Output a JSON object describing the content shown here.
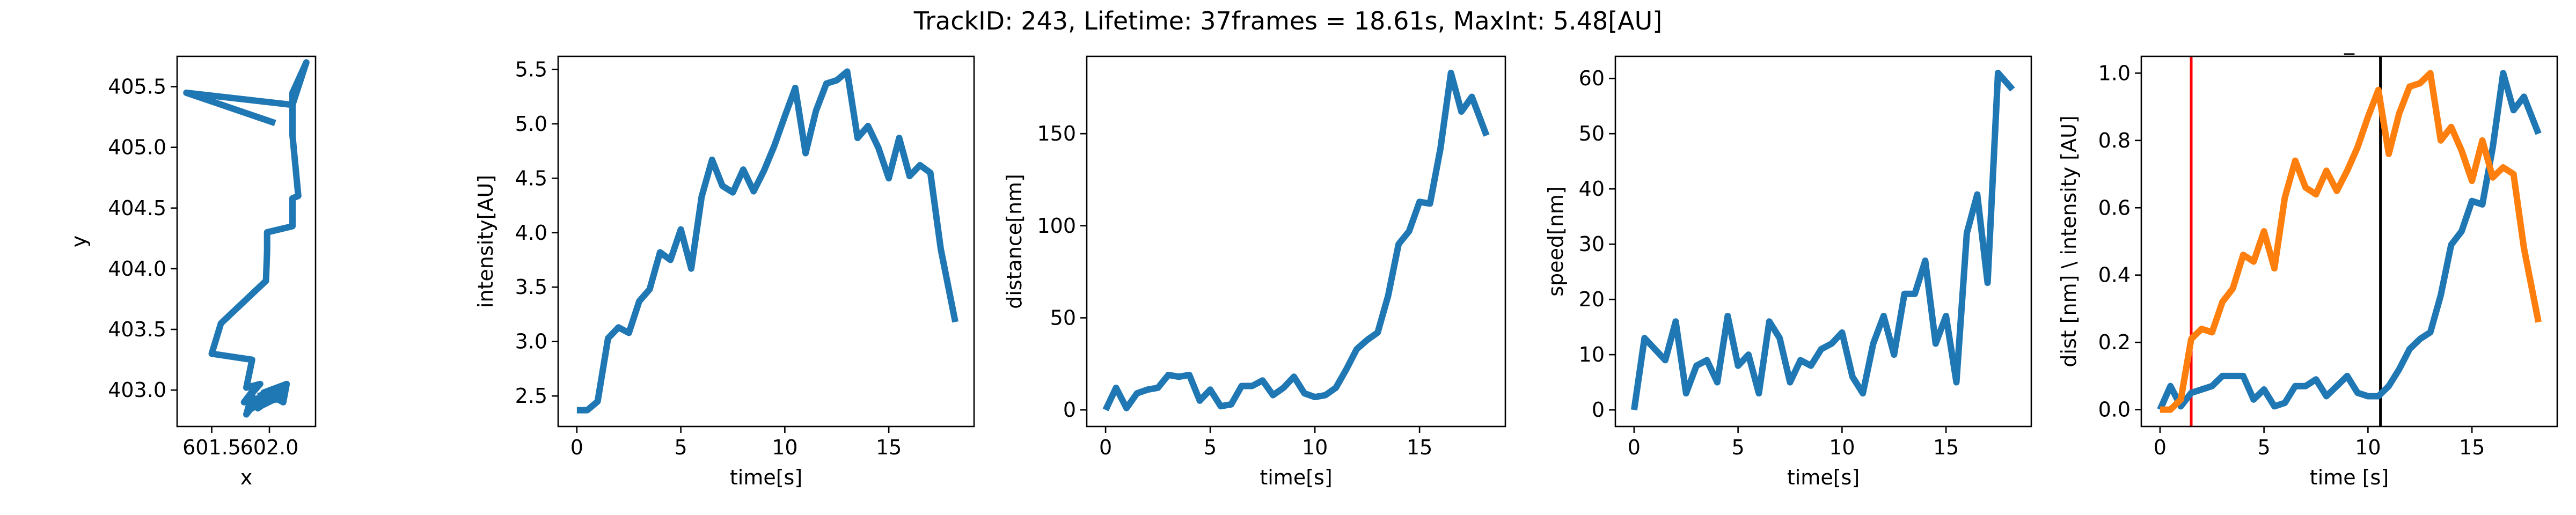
{
  "figure": {
    "title": "TrackID: 243, Lifetime: 37frames = 18.61s, MaxInt: 5.48[AU]"
  },
  "chart_data": [
    {
      "id": "trajectory",
      "type": "line",
      "title": "",
      "xlabel": "x",
      "ylabel": "y",
      "xlim": [
        601.2,
        602.4
      ],
      "ylim": [
        402.7,
        405.75
      ],
      "xticks": [
        601.5,
        602.0
      ],
      "xtick_labels": [
        "601.5",
        "602.0"
      ],
      "yticks": [
        403.0,
        403.5,
        404.0,
        404.5,
        405.0,
        405.5
      ],
      "ytick_labels": [
        "403.0",
        "403.5",
        "404.0",
        "404.5",
        "405.0",
        "405.5"
      ],
      "grid": false,
      "series": [
        {
          "color": "#1f77b4",
          "x": [
            602.05,
            601.28,
            602.2,
            602.32,
            602.2,
            602.2,
            602.25,
            602.2,
            602.2,
            601.98,
            601.98,
            601.97,
            601.58,
            601.5,
            601.85,
            601.8,
            601.92,
            601.78,
            601.86,
            601.8,
            601.9,
            601.85,
            602.0,
            601.95,
            602.1,
            601.82,
            602.05,
            601.9,
            601.98,
            601.86,
            602.02,
            602.12,
            602.15,
            601.95,
            602.05,
            602.1,
            601.9
          ],
          "y": [
            405.2,
            405.45,
            405.35,
            405.7,
            405.45,
            405.1,
            404.6,
            404.58,
            404.35,
            404.3,
            404.15,
            403.9,
            403.55,
            403.3,
            403.25,
            403.02,
            403.05,
            402.9,
            403.0,
            402.8,
            402.92,
            402.85,
            402.95,
            402.88,
            402.95,
            402.92,
            402.95,
            402.85,
            402.98,
            402.88,
            402.95,
            402.9,
            403.05,
            402.98,
            402.92,
            403.0,
            402.95
          ]
        }
      ]
    },
    {
      "id": "intensity",
      "type": "line",
      "title": "",
      "xlabel": "time[s]",
      "ylabel": "intensity[AU]",
      "xlim": [
        -0.9,
        19.1
      ],
      "ylim": [
        2.22,
        5.62
      ],
      "xticks": [
        0,
        5,
        10,
        15
      ],
      "xtick_labels": [
        "0",
        "5",
        "10",
        "15"
      ],
      "yticks": [
        2.5,
        3.0,
        3.5,
        4.0,
        4.5,
        5.0,
        5.5
      ],
      "ytick_labels": [
        "2.5",
        "3.0",
        "3.5",
        "4.0",
        "4.5",
        "5.0",
        "5.5"
      ],
      "grid": false,
      "series": [
        {
          "color": "#1f77b4",
          "x": [
            0,
            0.5,
            1,
            1.5,
            2,
            2.5,
            3,
            3.5,
            4,
            4.5,
            5,
            5.5,
            6,
            6.5,
            7,
            7.5,
            8,
            8.5,
            9,
            9.5,
            10,
            10.5,
            11,
            11.5,
            12,
            12.5,
            13,
            13.5,
            14,
            14.5,
            15,
            15.5,
            16,
            16.5,
            17,
            17.5,
            18.2
          ],
          "values": [
            2.37,
            2.37,
            2.45,
            3.03,
            3.13,
            3.08,
            3.37,
            3.48,
            3.82,
            3.75,
            4.03,
            3.67,
            4.33,
            4.67,
            4.43,
            4.37,
            4.58,
            4.38,
            4.57,
            4.8,
            5.07,
            5.33,
            4.73,
            5.12,
            5.37,
            5.4,
            5.48,
            4.87,
            4.98,
            4.78,
            4.5,
            4.87,
            4.52,
            4.62,
            4.55,
            3.85,
            3.18
          ]
        }
      ]
    },
    {
      "id": "distance",
      "type": "line",
      "title": "",
      "xlabel": "time[s]",
      "ylabel": "distance[nm]",
      "xlim": [
        -0.9,
        19.1
      ],
      "ylim": [
        -9,
        192
      ],
      "xticks": [
        0,
        5,
        10,
        15
      ],
      "xtick_labels": [
        "0",
        "5",
        "10",
        "15"
      ],
      "yticks": [
        0,
        50,
        100,
        150
      ],
      "ytick_labels": [
        "0",
        "50",
        "100",
        "150"
      ],
      "grid": false,
      "series": [
        {
          "color": "#1f77b4",
          "x": [
            0,
            0.5,
            1,
            1.5,
            2,
            2.5,
            3,
            3.5,
            4,
            4.5,
            5,
            5.5,
            6,
            6.5,
            7,
            7.5,
            8,
            8.5,
            9,
            9.5,
            10,
            10.5,
            11,
            11.5,
            12,
            12.5,
            13,
            13.5,
            14,
            14.5,
            15,
            15.5,
            16,
            16.5,
            17,
            17.5,
            18.2
          ],
          "values": [
            0,
            12,
            1,
            9,
            11,
            12,
            19,
            18,
            19,
            5,
            11,
            2,
            3,
            13,
            13,
            16,
            8,
            12,
            18,
            9,
            7,
            8,
            12,
            22,
            33,
            38,
            42,
            62,
            90,
            97,
            113,
            112,
            142,
            183,
            162,
            170,
            149
          ]
        }
      ]
    },
    {
      "id": "speed",
      "type": "line",
      "title": "",
      "xlabel": "time[s]",
      "ylabel": "speed[nm]",
      "xlim": [
        -0.9,
        19.1
      ],
      "ylim": [
        -3,
        64
      ],
      "xticks": [
        0,
        5,
        10,
        15
      ],
      "xtick_labels": [
        "0",
        "5",
        "10",
        "15"
      ],
      "yticks": [
        0,
        10,
        20,
        30,
        40,
        50,
        60
      ],
      "ytick_labels": [
        "0",
        "10",
        "20",
        "30",
        "40",
        "50",
        "60"
      ],
      "grid": false,
      "series": [
        {
          "color": "#1f77b4",
          "x": [
            0,
            0.5,
            1,
            1.5,
            2,
            2.5,
            3,
            3.5,
            4,
            4.5,
            5,
            5.5,
            6,
            6.5,
            7,
            7.5,
            8,
            8.5,
            9,
            9.5,
            10,
            10.5,
            11,
            11.5,
            12,
            12.5,
            13,
            13.5,
            14,
            14.5,
            15,
            15.5,
            16,
            16.5,
            17,
            17.5,
            18.2
          ],
          "values": [
            0,
            13,
            11,
            9,
            16,
            3,
            8,
            9,
            5,
            17,
            8,
            10,
            3,
            16,
            13,
            5,
            9,
            8,
            11,
            12,
            14,
            6,
            3,
            12,
            17,
            10,
            21,
            21,
            27,
            12,
            17,
            5,
            32,
            39,
            23,
            61,
            58
          ]
        }
      ]
    },
    {
      "id": "normalized",
      "type": "line",
      "title": "",
      "top_label": "_",
      "xlabel": "time [s]",
      "ylabel": "dist [nm] \\ intensity [AU]",
      "xlim": [
        -0.9,
        19.1
      ],
      "ylim": [
        -0.05,
        1.05
      ],
      "xticks": [
        0,
        5,
        10,
        15
      ],
      "xtick_labels": [
        "0",
        "5",
        "10",
        "15"
      ],
      "yticks": [
        0.0,
        0.2,
        0.4,
        0.6,
        0.8,
        1.0
      ],
      "ytick_labels": [
        "0.0",
        "0.2",
        "0.4",
        "0.6",
        "0.8",
        "1.0"
      ],
      "grid": false,
      "vlines": [
        {
          "x": 1.5,
          "color": "#ff0000"
        },
        {
          "x": 10.6,
          "color": "#000000"
        }
      ],
      "series": [
        {
          "color": "#1f77b4",
          "x": [
            0,
            0.5,
            1,
            1.5,
            2,
            2.5,
            3,
            3.5,
            4,
            4.5,
            5,
            5.5,
            6,
            6.5,
            7,
            7.5,
            8,
            8.5,
            9,
            9.5,
            10,
            10.5,
            11,
            11.5,
            12,
            12.5,
            13,
            13.5,
            14,
            14.5,
            15,
            15.5,
            16,
            16.5,
            17,
            17.5,
            18.2
          ],
          "values": [
            0.0,
            0.07,
            0.01,
            0.05,
            0.06,
            0.07,
            0.1,
            0.1,
            0.1,
            0.03,
            0.06,
            0.01,
            0.02,
            0.07,
            0.07,
            0.09,
            0.04,
            0.07,
            0.1,
            0.05,
            0.04,
            0.04,
            0.07,
            0.12,
            0.18,
            0.21,
            0.23,
            0.34,
            0.49,
            0.53,
            0.62,
            0.61,
            0.78,
            1.0,
            0.89,
            0.93,
            0.82
          ]
        },
        {
          "color": "#ff7f0e",
          "x": [
            0,
            0.5,
            1,
            1.5,
            2,
            2.5,
            3,
            3.5,
            4,
            4.5,
            5,
            5.5,
            6,
            6.5,
            7,
            7.5,
            8,
            8.5,
            9,
            9.5,
            10,
            10.5,
            11,
            11.5,
            12,
            12.5,
            13,
            13.5,
            14,
            14.5,
            15,
            15.5,
            16,
            16.5,
            17,
            17.5,
            18.2
          ],
          "values": [
            0.0,
            0.0,
            0.03,
            0.21,
            0.24,
            0.23,
            0.32,
            0.36,
            0.46,
            0.44,
            0.53,
            0.42,
            0.63,
            0.74,
            0.66,
            0.64,
            0.71,
            0.65,
            0.71,
            0.78,
            0.87,
            0.95,
            0.76,
            0.88,
            0.96,
            0.97,
            1.0,
            0.8,
            0.84,
            0.77,
            0.68,
            0.8,
            0.69,
            0.72,
            0.7,
            0.48,
            0.26
          ]
        }
      ]
    }
  ]
}
